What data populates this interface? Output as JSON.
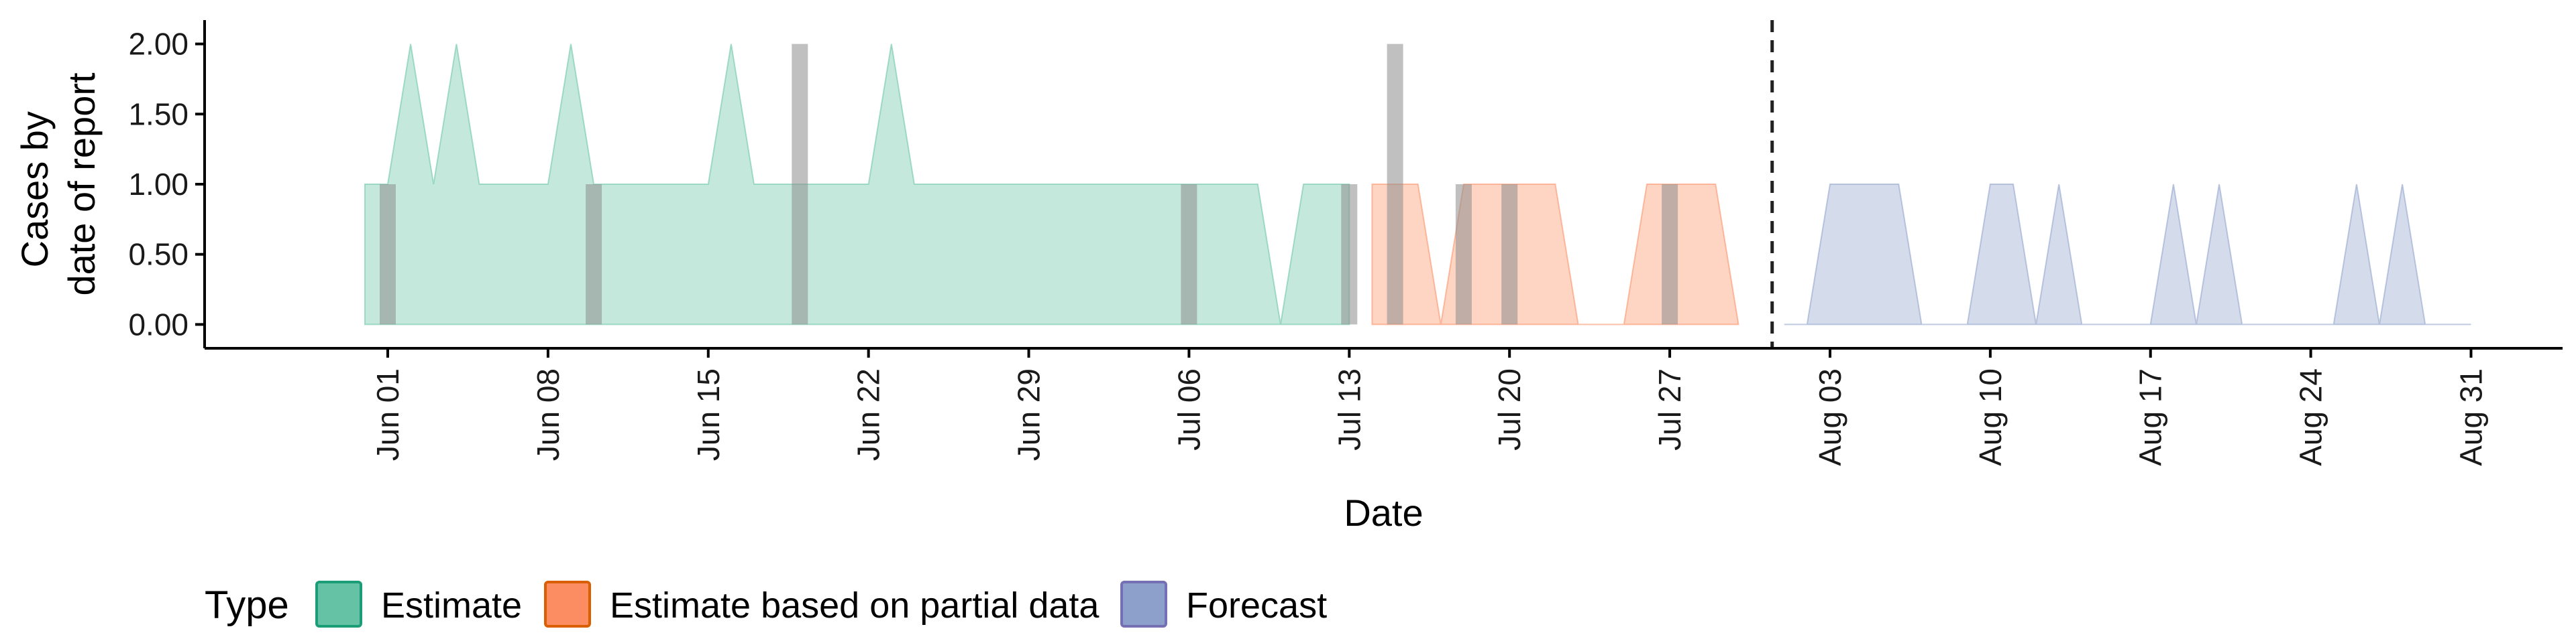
{
  "chart_data": {
    "type": "area",
    "xlabel": "Date",
    "ylabel_lines": [
      "Cases by",
      "date of report"
    ],
    "ylim": [
      0,
      2
    ],
    "y_ticks": [
      0,
      0.5,
      1,
      1.5,
      2
    ],
    "y_tick_labels": [
      "0.00",
      "0.50",
      "1.00",
      "1.50",
      "2.00"
    ],
    "x_ticks": [
      "2020-06-01",
      "2020-06-08",
      "2020-06-15",
      "2020-06-22",
      "2020-06-29",
      "2020-07-06",
      "2020-07-13",
      "2020-07-20",
      "2020-07-27",
      "2020-08-03",
      "2020-08-10",
      "2020-08-17",
      "2020-08-24",
      "2020-08-31"
    ],
    "x_tick_labels": [
      "Jun 01",
      "Jun 08",
      "Jun 15",
      "Jun 22",
      "Jun 29",
      "Jul 06",
      "Jul 13",
      "Jul 20",
      "Jul 27",
      "Aug 03",
      "Aug 10",
      "Aug 17",
      "Aug 24",
      "Aug 31"
    ],
    "forecast_start": "2020-08-01",
    "legend": {
      "title": "Type",
      "position": "bottom",
      "items": [
        {
          "label": "Estimate",
          "fill": "#66c2a5",
          "stroke": "#1b9e77"
        },
        {
          "label": "Estimate based on partial data",
          "fill": "#fc8d62",
          "stroke": "#d95f02"
        },
        {
          "label": "Forecast",
          "fill": "#8da0cb",
          "stroke": "#7570b3"
        }
      ]
    },
    "series": [
      {
        "name": "Estimate",
        "color": "#66c2a5",
        "points": [
          [
            "2020-05-31",
            1
          ],
          [
            "2020-06-01",
            1
          ],
          [
            "2020-06-02",
            2
          ],
          [
            "2020-06-03",
            1
          ],
          [
            "2020-06-04",
            2
          ],
          [
            "2020-06-05",
            1
          ],
          [
            "2020-06-06",
            1
          ],
          [
            "2020-06-07",
            1
          ],
          [
            "2020-06-08",
            1
          ],
          [
            "2020-06-09",
            2
          ],
          [
            "2020-06-10",
            1
          ],
          [
            "2020-06-11",
            1
          ],
          [
            "2020-06-12",
            1
          ],
          [
            "2020-06-13",
            1
          ],
          [
            "2020-06-14",
            1
          ],
          [
            "2020-06-15",
            1
          ],
          [
            "2020-06-16",
            2
          ],
          [
            "2020-06-17",
            1
          ],
          [
            "2020-06-18",
            1
          ],
          [
            "2020-06-19",
            1
          ],
          [
            "2020-06-20",
            1
          ],
          [
            "2020-06-21",
            1
          ],
          [
            "2020-06-22",
            1
          ],
          [
            "2020-06-23",
            2
          ],
          [
            "2020-06-24",
            1
          ],
          [
            "2020-06-25",
            1
          ],
          [
            "2020-06-26",
            1
          ],
          [
            "2020-06-27",
            1
          ],
          [
            "2020-06-28",
            1
          ],
          [
            "2020-06-29",
            1
          ],
          [
            "2020-06-30",
            1
          ],
          [
            "2020-07-01",
            1
          ],
          [
            "2020-07-02",
            1
          ],
          [
            "2020-07-03",
            1
          ],
          [
            "2020-07-04",
            1
          ],
          [
            "2020-07-05",
            1
          ],
          [
            "2020-07-06",
            1
          ],
          [
            "2020-07-07",
            1
          ],
          [
            "2020-07-08",
            1
          ],
          [
            "2020-07-09",
            1
          ],
          [
            "2020-07-10",
            0
          ],
          [
            "2020-07-11",
            1
          ],
          [
            "2020-07-12",
            1
          ],
          [
            "2020-07-13",
            1
          ]
        ]
      },
      {
        "name": "Estimate based on partial data",
        "color": "#fc8d62",
        "points": [
          [
            "2020-07-14",
            1
          ],
          [
            "2020-07-15",
            1
          ],
          [
            "2020-07-16",
            1
          ],
          [
            "2020-07-17",
            0
          ],
          [
            "2020-07-18",
            1
          ],
          [
            "2020-07-19",
            1
          ],
          [
            "2020-07-20",
            1
          ],
          [
            "2020-07-21",
            1
          ],
          [
            "2020-07-22",
            1
          ],
          [
            "2020-07-23",
            0
          ],
          [
            "2020-07-24",
            0
          ],
          [
            "2020-07-25",
            0
          ],
          [
            "2020-07-26",
            1
          ],
          [
            "2020-07-27",
            1
          ],
          [
            "2020-07-28",
            1
          ],
          [
            "2020-07-29",
            1
          ],
          [
            "2020-07-30",
            0
          ]
        ]
      },
      {
        "name": "Forecast",
        "color": "#8da0cb",
        "points": [
          [
            "2020-08-01",
            0
          ],
          [
            "2020-08-02",
            0
          ],
          [
            "2020-08-03",
            1
          ],
          [
            "2020-08-04",
            1
          ],
          [
            "2020-08-05",
            1
          ],
          [
            "2020-08-06",
            1
          ],
          [
            "2020-08-07",
            0
          ],
          [
            "2020-08-08",
            0
          ],
          [
            "2020-08-09",
            0
          ],
          [
            "2020-08-10",
            1
          ],
          [
            "2020-08-11",
            1
          ],
          [
            "2020-08-12",
            0
          ],
          [
            "2020-08-13",
            1
          ],
          [
            "2020-08-14",
            0
          ],
          [
            "2020-08-15",
            0
          ],
          [
            "2020-08-16",
            0
          ],
          [
            "2020-08-17",
            0
          ],
          [
            "2020-08-18",
            1
          ],
          [
            "2020-08-19",
            0
          ],
          [
            "2020-08-20",
            1
          ],
          [
            "2020-08-21",
            0
          ],
          [
            "2020-08-22",
            0
          ],
          [
            "2020-08-23",
            0
          ],
          [
            "2020-08-24",
            0
          ],
          [
            "2020-08-25",
            0
          ],
          [
            "2020-08-26",
            1
          ],
          [
            "2020-08-27",
            0
          ],
          [
            "2020-08-28",
            1
          ],
          [
            "2020-08-29",
            0
          ],
          [
            "2020-08-30",
            0
          ],
          [
            "2020-08-31",
            0
          ]
        ]
      }
    ],
    "reported_cases": {
      "color": "#8c8c8c",
      "bars": [
        [
          "2020-06-01",
          1
        ],
        [
          "2020-06-10",
          1
        ],
        [
          "2020-06-19",
          2
        ],
        [
          "2020-07-06",
          1
        ],
        [
          "2020-07-13",
          1
        ],
        [
          "2020-07-15",
          2
        ],
        [
          "2020-07-18",
          1
        ],
        [
          "2020-07-20",
          1
        ],
        [
          "2020-07-27",
          1
        ]
      ]
    }
  }
}
